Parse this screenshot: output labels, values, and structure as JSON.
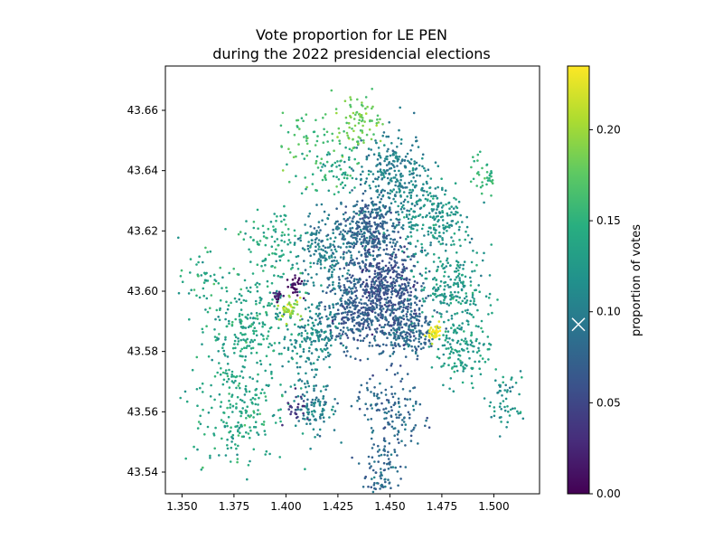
{
  "chart_data": {
    "type": "scatter",
    "title_line1": "Vote proportion for LE PEN",
    "title_line2": "during the 2022 presidencial elections",
    "xlabel": "",
    "ylabel": "",
    "xlim": [
      1.342,
      1.522
    ],
    "ylim": [
      43.5328,
      43.6747
    ],
    "x_ticks": [
      1.35,
      1.375,
      1.4,
      1.425,
      1.45,
      1.475,
      1.5
    ],
    "x_tick_labels": [
      "1.350",
      "1.375",
      "1.400",
      "1.425",
      "1.450",
      "1.475",
      "1.500"
    ],
    "y_ticks": [
      43.54,
      43.56,
      43.58,
      43.6,
      43.62,
      43.64,
      43.66
    ],
    "y_tick_labels": [
      "43.54",
      "43.56",
      "43.58",
      "43.60",
      "43.62",
      "43.64",
      "43.66"
    ],
    "grid": false,
    "colormap": "viridis",
    "colorbar": {
      "label": "proportion of votes",
      "min": 0.0,
      "max": 0.235,
      "ticks": [
        0.0,
        0.05,
        0.1,
        0.15,
        0.2
      ],
      "tick_labels": [
        "0.00",
        "0.05",
        "0.10",
        "0.15",
        "0.20"
      ],
      "marker_value": 0.1
    },
    "clusters": [
      {
        "x": 1.447,
        "y": 43.601,
        "value": 0.06,
        "n": 500,
        "spread": 0.009
      },
      {
        "x": 1.44,
        "y": 43.62,
        "value": 0.075,
        "n": 350,
        "spread": 0.007
      },
      {
        "x": 1.432,
        "y": 43.592,
        "value": 0.07,
        "n": 250,
        "spread": 0.007
      },
      {
        "x": 1.458,
        "y": 43.588,
        "value": 0.08,
        "n": 250,
        "spread": 0.007
      },
      {
        "x": 1.452,
        "y": 43.638,
        "value": 0.1,
        "n": 260,
        "spread": 0.008
      },
      {
        "x": 1.47,
        "y": 43.625,
        "value": 0.12,
        "n": 230,
        "spread": 0.008
      },
      {
        "x": 1.42,
        "y": 43.612,
        "value": 0.1,
        "n": 200,
        "spread": 0.008
      },
      {
        "x": 1.48,
        "y": 43.602,
        "value": 0.125,
        "n": 200,
        "spread": 0.008
      },
      {
        "x": 1.412,
        "y": 43.585,
        "value": 0.11,
        "n": 170,
        "spread": 0.007
      },
      {
        "x": 1.485,
        "y": 43.582,
        "value": 0.13,
        "n": 150,
        "spread": 0.007
      },
      {
        "x": 1.38,
        "y": 43.588,
        "value": 0.135,
        "n": 240,
        "spread": 0.011
      },
      {
        "x": 1.378,
        "y": 43.56,
        "value": 0.14,
        "n": 210,
        "spread": 0.011
      },
      {
        "x": 1.395,
        "y": 43.615,
        "value": 0.14,
        "n": 110,
        "spread": 0.008
      },
      {
        "x": 1.413,
        "y": 43.562,
        "value": 0.1,
        "n": 110,
        "spread": 0.006
      },
      {
        "x": 1.45,
        "y": 43.56,
        "value": 0.08,
        "n": 140,
        "spread": 0.008
      },
      {
        "x": 1.447,
        "y": 43.54,
        "value": 0.08,
        "n": 80,
        "spread": 0.005
      },
      {
        "x": 1.41,
        "y": 43.648,
        "value": 0.165,
        "n": 60,
        "spread": 0.009
      },
      {
        "x": 1.434,
        "y": 43.656,
        "value": 0.18,
        "n": 90,
        "spread": 0.006
      },
      {
        "x": 1.425,
        "y": 43.64,
        "value": 0.14,
        "n": 60,
        "spread": 0.006
      },
      {
        "x": 1.495,
        "y": 43.638,
        "value": 0.15,
        "n": 35,
        "spread": 0.004
      },
      {
        "x": 1.505,
        "y": 43.565,
        "value": 0.12,
        "n": 55,
        "spread": 0.006
      },
      {
        "x": 1.36,
        "y": 43.605,
        "value": 0.14,
        "n": 40,
        "spread": 0.005
      },
      {
        "x": 1.402,
        "y": 43.594,
        "value": 0.2,
        "n": 45,
        "spread": 0.0025
      },
      {
        "x": 1.471,
        "y": 43.586,
        "value": 0.235,
        "n": 45,
        "spread": 0.0018
      },
      {
        "x": 1.404,
        "y": 43.602,
        "value": 0.01,
        "n": 30,
        "spread": 0.0018
      },
      {
        "x": 1.396,
        "y": 43.598,
        "value": 0.02,
        "n": 18,
        "spread": 0.0012
      },
      {
        "x": 1.405,
        "y": 43.562,
        "value": 0.04,
        "n": 25,
        "spread": 0.003
      }
    ]
  }
}
